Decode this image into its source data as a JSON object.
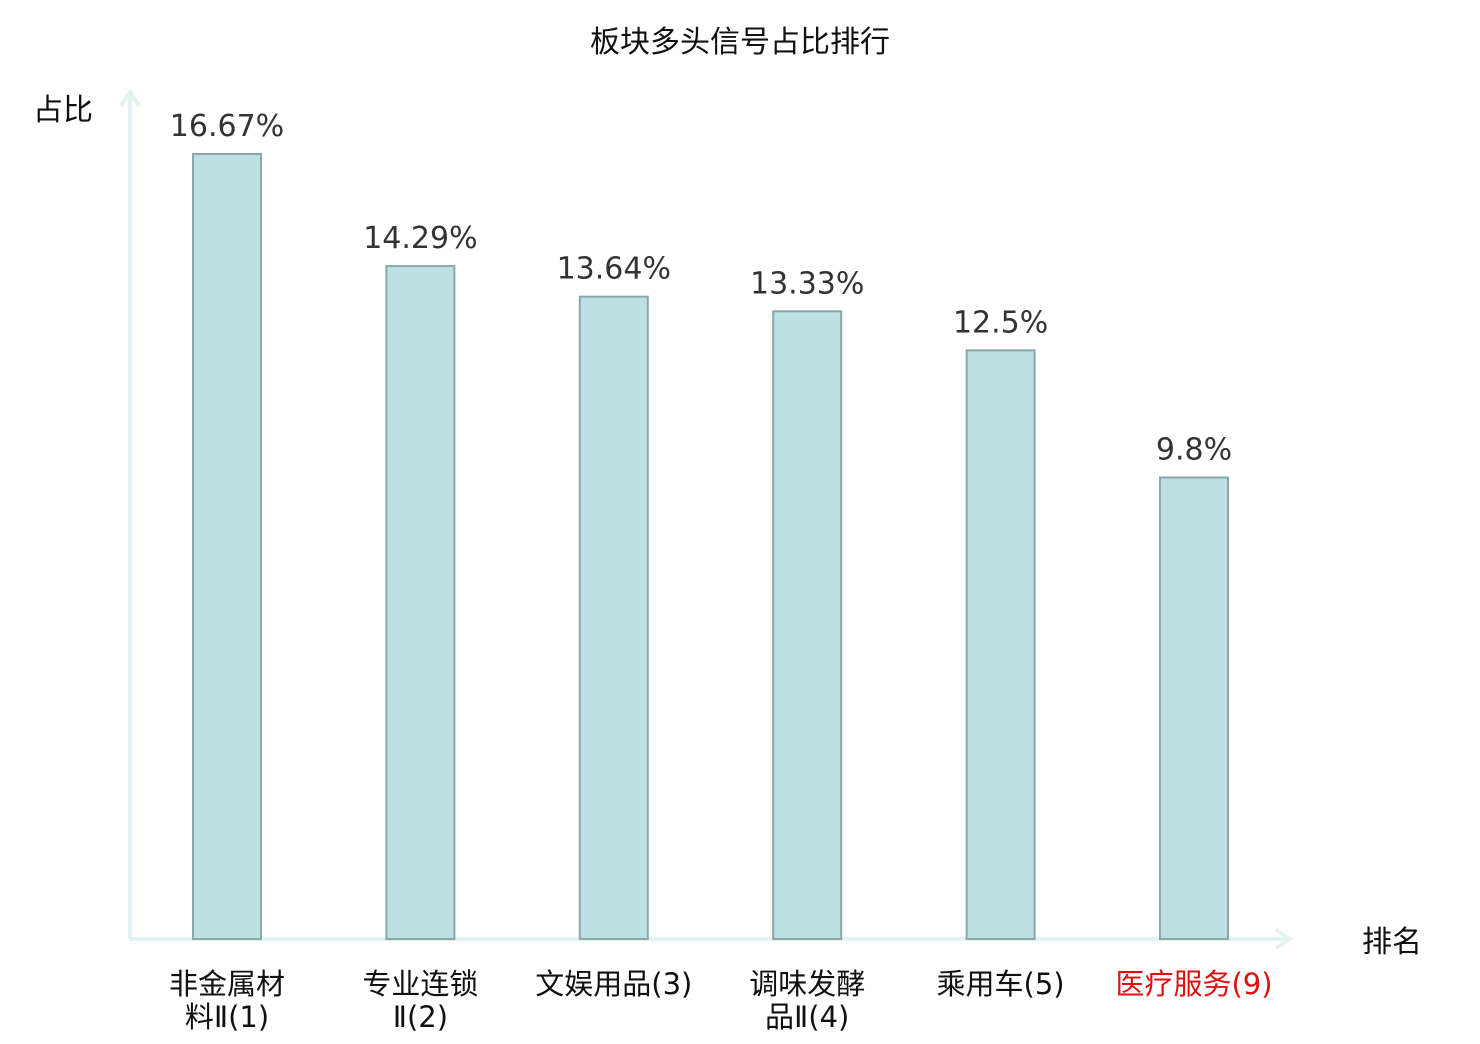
{
  "chart_data": {
    "type": "bar",
    "title": "板块多头信号占比排行",
    "ylabel": "占比",
    "xlabel": "排名",
    "ylim": [
      0,
      20
    ],
    "grid": false,
    "legend": "none",
    "categories": [
      {
        "lines": [
          "非金属材",
          "料Ⅱ(1)"
        ],
        "highlight": false
      },
      {
        "lines": [
          "专业连锁",
          "Ⅱ(2)"
        ],
        "highlight": false
      },
      {
        "lines": [
          "文娱用品(3)"
        ],
        "highlight": false
      },
      {
        "lines": [
          "调味发酵",
          "品Ⅱ(4)"
        ],
        "highlight": false
      },
      {
        "lines": [
          "乘用车(5)"
        ],
        "highlight": false
      },
      {
        "lines": [
          "医疗服务(9)"
        ],
        "highlight": true
      }
    ],
    "values": [
      16.67,
      14.29,
      13.64,
      13.33,
      12.5,
      9.8
    ],
    "data_labels": [
      "16.67%",
      "14.29%",
      "13.64%",
      "13.33%",
      "12.5%",
      "9.8%"
    ],
    "colors": {
      "bar_fill": "#bde0e2",
      "bar_stroke": "#8aa8aa",
      "axis": "#e3f3f1",
      "label_text": "#333333",
      "highlight_text": "#e01010"
    }
  }
}
